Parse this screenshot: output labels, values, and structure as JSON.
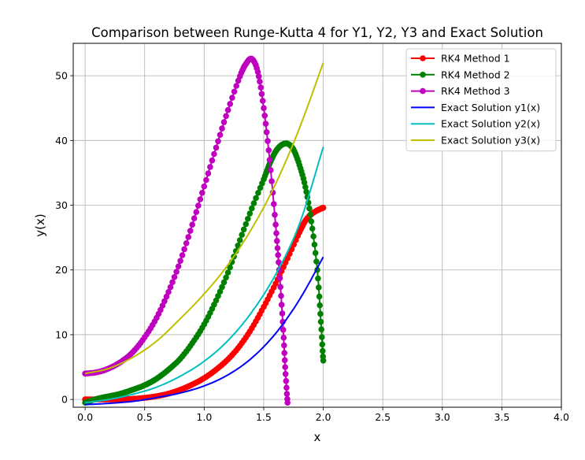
{
  "chart_data": {
    "type": "line",
    "title": "Comparison between Runge-Kutta 4 for Y1, Y2, Y3 and Exact Solution",
    "xlabel": "x",
    "ylabel": "y(x)",
    "xlim": [
      -0.1,
      4.0
    ],
    "ylim": [
      -1.2,
      55
    ],
    "xticks": [
      "0.0",
      "0.5",
      "1.0",
      "1.5",
      "2.0",
      "2.5",
      "3.0",
      "3.5",
      "4.0"
    ],
    "xtick_values": [
      0,
      0.5,
      1.0,
      1.5,
      2.0,
      2.5,
      3.0,
      3.5,
      4.0
    ],
    "yticks": [
      "0",
      "10",
      "20",
      "30",
      "40",
      "50"
    ],
    "ytick_values": [
      0,
      10,
      20,
      30,
      40,
      50
    ],
    "grid": true,
    "legend_position": "top-right",
    "series": [
      {
        "name": "RK4 Method 1",
        "color": "#ff0000",
        "marker": "circle",
        "x": [
          0.0,
          0.1,
          0.2,
          0.3,
          0.4,
          0.5,
          0.6,
          0.7,
          0.8,
          0.9,
          1.0,
          1.1,
          1.2,
          1.3,
          1.4,
          1.5,
          1.6,
          1.7,
          1.8,
          1.85,
          1.9,
          1.95,
          2.0
        ],
        "y": [
          0.0,
          0.0,
          0.0,
          0.0,
          0.1,
          0.25,
          0.5,
          0.9,
          1.5,
          2.3,
          3.3,
          4.6,
          6.2,
          8.3,
          11.0,
          14.3,
          17.9,
          21.8,
          25.8,
          27.6,
          28.6,
          29.2,
          29.6
        ]
      },
      {
        "name": "RK4 Method 2",
        "color": "#008000",
        "marker": "circle",
        "x": [
          0.0,
          0.1,
          0.2,
          0.3,
          0.4,
          0.5,
          0.6,
          0.7,
          0.8,
          0.9,
          1.0,
          1.1,
          1.2,
          1.3,
          1.4,
          1.5,
          1.55,
          1.6,
          1.65,
          1.7,
          1.75,
          1.8,
          1.85,
          1.9,
          1.95,
          1.98,
          2.0
        ],
        "y": [
          -0.5,
          0.1,
          0.5,
          0.9,
          1.5,
          2.2,
          3.2,
          4.6,
          6.3,
          8.7,
          11.6,
          15.3,
          19.6,
          24.6,
          29.5,
          34.0,
          36.4,
          38.3,
          39.3,
          39.5,
          38.6,
          36.2,
          32.8,
          27.5,
          20.0,
          12.0,
          6.0
        ]
      },
      {
        "name": "RK4 Method 3",
        "color": "#bf00bf",
        "marker": "circle",
        "x": [
          0.0,
          0.1,
          0.2,
          0.3,
          0.4,
          0.5,
          0.6,
          0.7,
          0.8,
          0.9,
          1.0,
          1.1,
          1.2,
          1.3,
          1.35,
          1.4,
          1.45,
          1.5,
          1.55,
          1.6,
          1.63,
          1.66,
          1.68,
          1.7
        ],
        "y": [
          4.0,
          4.2,
          4.8,
          5.8,
          7.3,
          9.6,
          12.6,
          16.6,
          21.4,
          27.0,
          32.9,
          38.9,
          44.7,
          49.9,
          51.8,
          52.6,
          50.6,
          45.0,
          37.0,
          27.0,
          20.0,
          12.0,
          5.0,
          -0.5
        ]
      },
      {
        "name": "Exact Solution y1(x)",
        "color": "#0000ff",
        "marker": "none",
        "x": [
          0.0,
          0.2,
          0.4,
          0.6,
          0.8,
          1.0,
          1.2,
          1.4,
          1.6,
          1.8,
          2.0
        ],
        "y": [
          -0.8,
          -0.6,
          -0.3,
          0.3,
          1.0,
          2.1,
          3.8,
          6.4,
          10.2,
          15.4,
          22.0
        ]
      },
      {
        "name": "Exact Solution y2(x)",
        "color": "#00bfbf",
        "marker": "none",
        "x": [
          0.0,
          0.2,
          0.4,
          0.6,
          0.8,
          1.0,
          1.2,
          1.4,
          1.6,
          1.8,
          2.0
        ],
        "y": [
          -0.5,
          0.0,
          0.8,
          1.9,
          3.6,
          5.9,
          9.1,
          13.5,
          19.3,
          27.1,
          39.0
        ]
      },
      {
        "name": "Exact Solution y3(x)",
        "color": "#bfbf00",
        "marker": "none",
        "x": [
          0.0,
          0.2,
          0.4,
          0.6,
          0.8,
          1.0,
          1.2,
          1.4,
          1.6,
          1.8,
          2.0
        ],
        "y": [
          4.0,
          4.8,
          6.5,
          9.0,
          12.5,
          16.3,
          20.8,
          26.4,
          33.3,
          41.9,
          52.0
        ]
      }
    ]
  }
}
